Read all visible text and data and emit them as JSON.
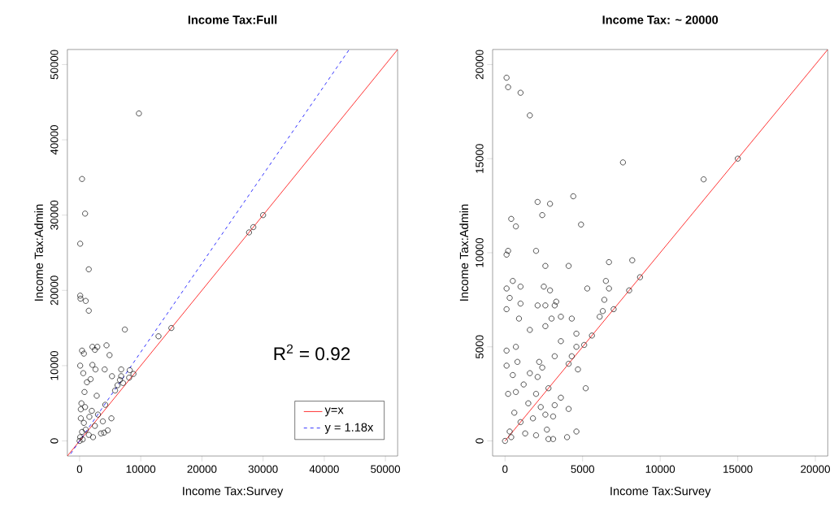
{
  "chart_data": [
    {
      "type": "scatter",
      "title": "Income Tax:Full",
      "xlabel": "Income Tax:Survey",
      "ylabel": "Income Tax:Admin",
      "xlim": [
        -2000,
        52000
      ],
      "ylim": [
        -2000,
        52000
      ],
      "xticks": [
        0,
        10000,
        20000,
        30000,
        40000,
        50000
      ],
      "yticks": [
        0,
        10000,
        20000,
        30000,
        40000,
        50000
      ],
      "grid": false,
      "legend": "bottom right",
      "annotations": [
        "R$^{2}$ = 0.92"
      ],
      "series": [
        {
          "type": "scatter",
          "color": "#000000",
          "marker": "circle",
          "x": [
            9700,
            400,
            900,
            100,
            1500,
            100,
            150,
            1000,
            1500,
            7400,
            12900,
            15000,
            27700,
            28400,
            30000,
            2100,
            2900,
            4400,
            4900,
            400,
            700,
            2500,
            100,
            2100,
            2600,
            4100,
            5300,
            6800,
            8200,
            8800,
            8100,
            7100,
            6200,
            5800,
            6800,
            6600,
            5200,
            4600,
            4000,
            0,
            500,
            1000,
            200,
            1500,
            2500,
            300,
            800,
            2000,
            3000,
            3500,
            1200,
            2800,
            4200,
            600,
            1800,
            100,
            400,
            700,
            1600,
            2200,
            3800,
            200,
            900
          ],
          "values": [
            43500,
            34800,
            30200,
            26200,
            22800,
            19300,
            18900,
            18600,
            17300,
            14800,
            13900,
            15000,
            27700,
            28400,
            30000,
            12500,
            12500,
            12700,
            11400,
            12000,
            11600,
            12100,
            10000,
            10100,
            9500,
            9500,
            8600,
            9500,
            9400,
            8900,
            8400,
            7700,
            7400,
            6700,
            8600,
            8100,
            3000,
            1400,
            1100,
            0,
            200,
            1500,
            3000,
            800,
            2000,
            5000,
            6500,
            4000,
            3500,
            1000,
            7800,
            6000,
            4800,
            9000,
            8200,
            500,
            1200,
            2400,
            3200,
            500,
            2600,
            4200,
            4500
          ]
        },
        {
          "type": "line",
          "name": "y=x",
          "color": "#ff0000",
          "line_style": "solid",
          "marker": "none",
          "x": [
            -2000,
            52000
          ],
          "values": [
            -2000,
            52000
          ]
        },
        {
          "type": "line",
          "name": "y = 1.18x",
          "color": "#0000ff",
          "line_style": "dashed",
          "marker": "none",
          "x": [
            44000,
            -1700
          ],
          "values": [
            51900,
            -2000
          ]
        }
      ]
    },
    {
      "type": "scatter",
      "title": "Income Tax: ~ 20000",
      "xlabel": "Income Tax:Survey",
      "ylabel": "Income Tax:Admin",
      "xlim": [
        -800,
        20800
      ],
      "ylim": [
        -800,
        20800
      ],
      "xticks": [
        0,
        5000,
        10000,
        15000,
        20000
      ],
      "yticks": [
        0,
        5000,
        10000,
        15000,
        20000
      ],
      "grid": false,
      "series": [
        {
          "type": "scatter",
          "color": "#000000",
          "marker": "circle",
          "x": [
            100,
            200,
            1000,
            1600,
            7600,
            12800,
            15000,
            4400,
            2100,
            2900,
            2400,
            400,
            700,
            4900,
            200,
            100,
            2000,
            2600,
            4100,
            6700,
            8200,
            8700,
            8000,
            6500,
            6700,
            5300,
            6400,
            7000,
            6300,
            6100,
            100,
            500,
            1000,
            2500,
            2900,
            2100,
            2600,
            3200,
            3300,
            300,
            100,
            1000,
            3600,
            4300,
            3000,
            900,
            2600,
            1600,
            4600,
            5600,
            3600,
            5100,
            4600,
            4300,
            4100,
            4700,
            5200,
            3600,
            4100,
            4600,
            4000,
            2800,
            3100,
            3200,
            3100,
            2600,
            2700,
            2100,
            2400,
            3200,
            700,
            100,
            0,
            300,
            600,
            200,
            1000,
            1500,
            500,
            1200,
            2000,
            100,
            800,
            1800,
            2300,
            2800,
            400,
            1300,
            2000,
            700,
            1600,
            2200
          ],
          "values": [
            19300,
            18800,
            18500,
            17300,
            14800,
            13900,
            15000,
            13000,
            12700,
            12600,
            12000,
            11800,
            11400,
            11500,
            10100,
            9900,
            10100,
            9300,
            9300,
            9500,
            9600,
            8700,
            8000,
            8500,
            8100,
            8100,
            7500,
            7000,
            6900,
            6600,
            8100,
            8500,
            8200,
            8200,
            8000,
            7200,
            7200,
            7200,
            7400,
            7600,
            7000,
            7300,
            6600,
            6500,
            6500,
            6500,
            6100,
            5900,
            5700,
            5600,
            5300,
            5100,
            5000,
            4500,
            4100,
            3800,
            2800,
            2300,
            1700,
            500,
            200,
            100,
            100,
            1900,
            1300,
            1400,
            600,
            3400,
            3900,
            4500,
            5000,
            4800,
            0,
            500,
            1500,
            2500,
            1000,
            2000,
            3500,
            3000,
            2500,
            4000,
            4200,
            1200,
            1800,
            2800,
            200,
            400,
            300,
            2600,
            3600,
            4200
          ]
        },
        {
          "type": "line",
          "color": "#ff0000",
          "line_style": "solid",
          "marker": "none",
          "x": [
            0,
            20800
          ],
          "values": [
            0,
            20800
          ]
        }
      ]
    }
  ]
}
